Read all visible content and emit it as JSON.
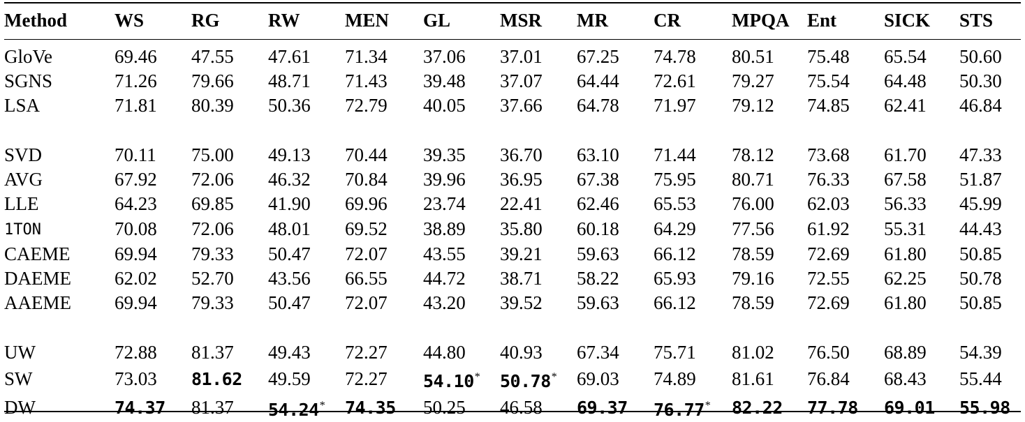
{
  "table": {
    "headers": [
      "Method",
      "WS",
      "RG",
      "RW",
      "MEN",
      "GL",
      "MSR",
      "MR",
      "CR",
      "MPQA",
      "Ent",
      "SICK",
      "STS"
    ],
    "groups": [
      [
        {
          "method": "GloVe",
          "cells": [
            {
              "v": "69.46"
            },
            {
              "v": "47.55"
            },
            {
              "v": "47.61"
            },
            {
              "v": "71.34"
            },
            {
              "v": "37.06"
            },
            {
              "v": "37.01"
            },
            {
              "v": "67.25"
            },
            {
              "v": "74.78"
            },
            {
              "v": "80.51"
            },
            {
              "v": "75.48"
            },
            {
              "v": "65.54"
            },
            {
              "v": "50.60"
            }
          ]
        },
        {
          "method": "SGNS",
          "cells": [
            {
              "v": "71.26"
            },
            {
              "v": "79.66"
            },
            {
              "v": "48.71"
            },
            {
              "v": "71.43"
            },
            {
              "v": "39.48"
            },
            {
              "v": "37.07"
            },
            {
              "v": "64.44"
            },
            {
              "v": "72.61"
            },
            {
              "v": "79.27"
            },
            {
              "v": "75.54"
            },
            {
              "v": "64.48"
            },
            {
              "v": "50.30"
            }
          ]
        },
        {
          "method": "LSA",
          "cells": [
            {
              "v": "71.81"
            },
            {
              "v": "80.39"
            },
            {
              "v": "50.36"
            },
            {
              "v": "72.79"
            },
            {
              "v": "40.05"
            },
            {
              "v": "37.66"
            },
            {
              "v": "64.78"
            },
            {
              "v": "71.97"
            },
            {
              "v": "79.12"
            },
            {
              "v": "74.85"
            },
            {
              "v": "62.41"
            },
            {
              "v": "46.84"
            }
          ]
        }
      ],
      [
        {
          "method": "SVD",
          "cells": [
            {
              "v": "70.11"
            },
            {
              "v": "75.00"
            },
            {
              "v": "49.13"
            },
            {
              "v": "70.44"
            },
            {
              "v": "39.35"
            },
            {
              "v": "36.70"
            },
            {
              "v": "63.10"
            },
            {
              "v": "71.44"
            },
            {
              "v": "78.12"
            },
            {
              "v": "73.68"
            },
            {
              "v": "61.70"
            },
            {
              "v": "47.33"
            }
          ]
        },
        {
          "method": "AVG",
          "cells": [
            {
              "v": "67.92"
            },
            {
              "v": "72.06"
            },
            {
              "v": "46.32"
            },
            {
              "v": "70.84"
            },
            {
              "v": "39.96"
            },
            {
              "v": "36.95"
            },
            {
              "v": "67.38"
            },
            {
              "v": "75.95"
            },
            {
              "v": "80.71"
            },
            {
              "v": "76.33"
            },
            {
              "v": "67.58"
            },
            {
              "v": "51.87"
            }
          ]
        },
        {
          "method": "LLE",
          "cells": [
            {
              "v": "64.23"
            },
            {
              "v": "69.85"
            },
            {
              "v": "41.90"
            },
            {
              "v": "69.96"
            },
            {
              "v": "23.74"
            },
            {
              "v": "22.41"
            },
            {
              "v": "62.46"
            },
            {
              "v": "65.53"
            },
            {
              "v": "76.00"
            },
            {
              "v": "62.03"
            },
            {
              "v": "56.33"
            },
            {
              "v": "45.99"
            }
          ]
        },
        {
          "method": "1TON",
          "sc": true,
          "cells": [
            {
              "v": "70.08"
            },
            {
              "v": "72.06"
            },
            {
              "v": "48.01"
            },
            {
              "v": "69.52"
            },
            {
              "v": "38.89"
            },
            {
              "v": "35.80"
            },
            {
              "v": "60.18"
            },
            {
              "v": "64.29"
            },
            {
              "v": "77.56"
            },
            {
              "v": "61.92"
            },
            {
              "v": "55.31"
            },
            {
              "v": "44.43"
            }
          ]
        },
        {
          "method": "CAEME",
          "cells": [
            {
              "v": "69.94"
            },
            {
              "v": "79.33"
            },
            {
              "v": "50.47"
            },
            {
              "v": "72.07"
            },
            {
              "v": "43.55"
            },
            {
              "v": "39.21"
            },
            {
              "v": "59.63"
            },
            {
              "v": "66.12"
            },
            {
              "v": "78.59"
            },
            {
              "v": "72.69"
            },
            {
              "v": "61.80"
            },
            {
              "v": "50.85"
            }
          ]
        },
        {
          "method": "DAEME",
          "cells": [
            {
              "v": "62.02"
            },
            {
              "v": "52.70"
            },
            {
              "v": "43.56"
            },
            {
              "v": "66.55"
            },
            {
              "v": "44.72"
            },
            {
              "v": "38.71"
            },
            {
              "v": "58.22"
            },
            {
              "v": "65.93"
            },
            {
              "v": "79.16"
            },
            {
              "v": "72.55"
            },
            {
              "v": "62.25"
            },
            {
              "v": "50.78"
            }
          ]
        },
        {
          "method": "AAEME",
          "cells": [
            {
              "v": "69.94"
            },
            {
              "v": "79.33"
            },
            {
              "v": "50.47"
            },
            {
              "v": "72.07"
            },
            {
              "v": "43.20"
            },
            {
              "v": "39.52"
            },
            {
              "v": "59.63"
            },
            {
              "v": "66.12"
            },
            {
              "v": "78.59"
            },
            {
              "v": "72.69"
            },
            {
              "v": "61.80"
            },
            {
              "v": "50.85"
            }
          ]
        }
      ],
      [
        {
          "method": "UW",
          "cells": [
            {
              "v": "72.88"
            },
            {
              "v": "81.37"
            },
            {
              "v": "49.43"
            },
            {
              "v": "72.27"
            },
            {
              "v": "44.80"
            },
            {
              "v": "40.93"
            },
            {
              "v": "67.34"
            },
            {
              "v": "75.71"
            },
            {
              "v": "81.02"
            },
            {
              "v": "76.50"
            },
            {
              "v": "68.89"
            },
            {
              "v": "54.39"
            }
          ]
        },
        {
          "method": "SW",
          "cells": [
            {
              "v": "73.03"
            },
            {
              "v": "81.62",
              "bold": true
            },
            {
              "v": "49.59"
            },
            {
              "v": "72.27"
            },
            {
              "v": "54.10",
              "bold": true,
              "star": "*"
            },
            {
              "v": "50.78",
              "bold": true,
              "star": "*"
            },
            {
              "v": "69.03"
            },
            {
              "v": "74.89"
            },
            {
              "v": "81.61"
            },
            {
              "v": "76.84"
            },
            {
              "v": "68.43"
            },
            {
              "v": "55.44"
            }
          ]
        },
        {
          "method": "DW",
          "cells": [
            {
              "v": "74.37",
              "bold": true
            },
            {
              "v": "81.37"
            },
            {
              "v": "54.24",
              "bold": true,
              "star": "*"
            },
            {
              "v": "74.35",
              "bold": true
            },
            {
              "v": "50.25"
            },
            {
              "v": "46.58"
            },
            {
              "v": "69.37",
              "bold": true
            },
            {
              "v": "76.77",
              "bold": true,
              "star": "*"
            },
            {
              "v": "82.22",
              "bold": true
            },
            {
              "v": "77.78",
              "bold": true
            },
            {
              "v": "69.01",
              "bold": true
            },
            {
              "v": "55.98",
              "bold": true
            }
          ]
        }
      ]
    ]
  }
}
